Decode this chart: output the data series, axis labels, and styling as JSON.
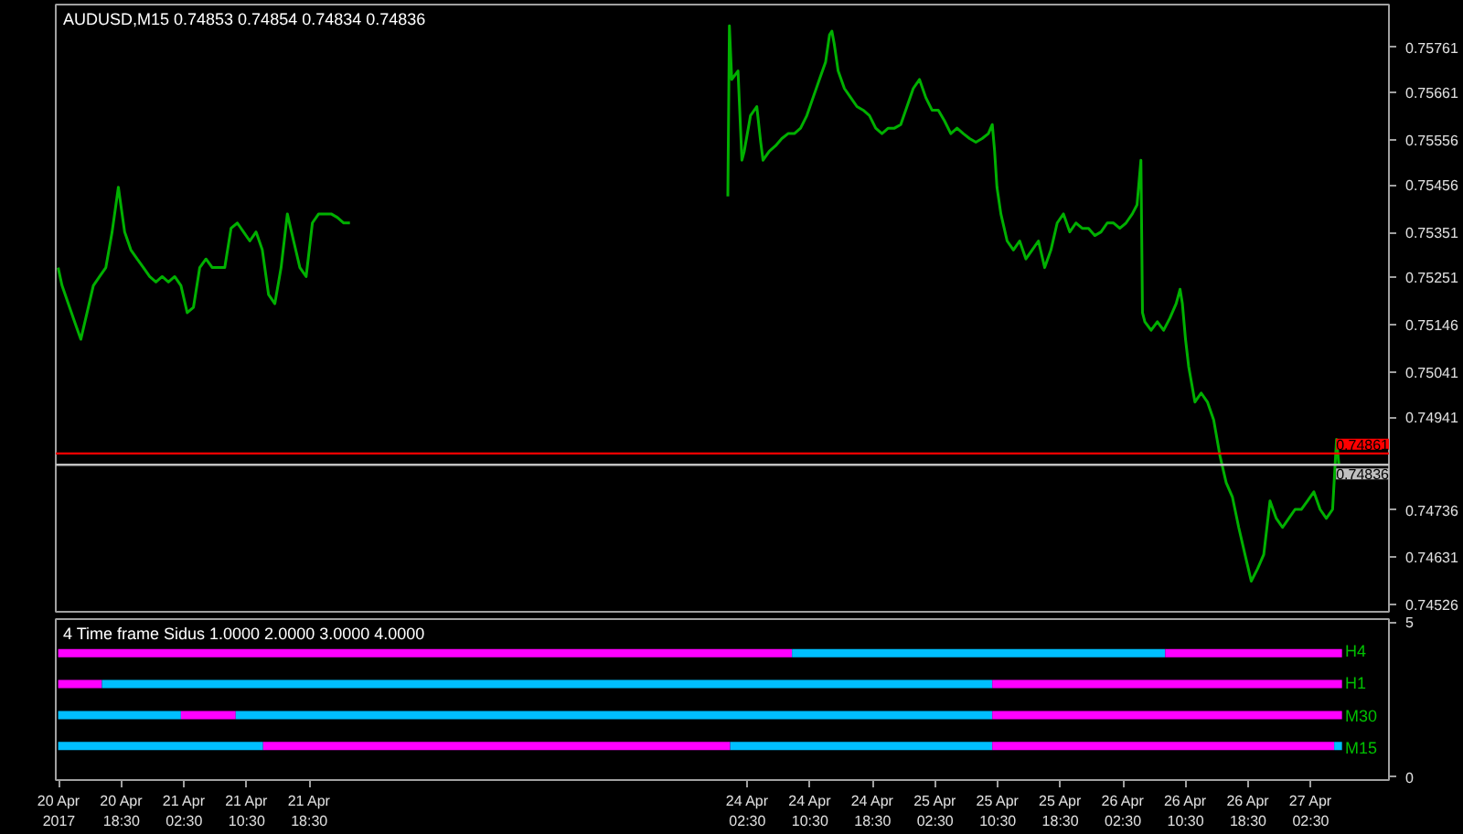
{
  "chart_data": [
    {
      "type": "line",
      "title": "AUDUSD,M15  0.74853 0.74854 0.74834 0.74836",
      "tick_labels": "y",
      "xlim": [
        "2017-04-20T10:06",
        "2017-04-27T12:30"
      ],
      "ylim": [
        0.7451,
        0.75856
      ],
      "yticks": [
        0.75761,
        0.75661,
        0.75556,
        0.75456,
        0.75351,
        0.75251,
        0.75146,
        0.75041,
        0.74941,
        0.74736,
        0.74631,
        0.74526
      ],
      "ref_lines": [
        {
          "axis": "y",
          "value": 0.74861,
          "label": "0.74861",
          "color": "#ff0000"
        },
        {
          "axis": "y",
          "value": 0.74836,
          "label": "0.74836",
          "color": "#c0c0c0"
        }
      ],
      "series": [
        {
          "color": "#00b000",
          "x": [
            "2017-04-20T10:24",
            "2017-04-20T10:54",
            "2017-04-20T11:42",
            "2017-04-20T12:30",
            "2017-04-20T13:18",
            "2017-04-20T14:06",
            "2017-04-20T14:54",
            "2017-04-20T15:42",
            "2017-04-20T16:30",
            "2017-04-20T17:18",
            "2017-04-20T18:06",
            "2017-04-20T18:54",
            "2017-04-20T19:42",
            "2017-04-20T20:30",
            "2017-04-20T21:18",
            "2017-04-20T22:06",
            "2017-04-20T22:54",
            "2017-04-20T23:42",
            "2017-04-21T00:30",
            "2017-04-21T01:18",
            "2017-04-21T02:06",
            "2017-04-21T02:54",
            "2017-04-21T03:42",
            "2017-04-21T04:30",
            "2017-04-21T05:18",
            "2017-04-21T06:06",
            "2017-04-21T06:54",
            "2017-04-21T07:42",
            "2017-04-21T08:30",
            "2017-04-21T09:18",
            "2017-04-21T10:06",
            "2017-04-21T10:54",
            "2017-04-21T11:42",
            "2017-04-21T12:30",
            "2017-04-21T13:18",
            "2017-04-21T14:06",
            "2017-04-21T14:54",
            "2017-04-21T15:42",
            "2017-04-21T16:30",
            "2017-04-21T17:18",
            "2017-04-21T18:06",
            "2017-04-21T18:54",
            "2017-04-21T19:42",
            "2017-04-21T20:30",
            "2017-04-21T21:18",
            "2017-04-21T22:06",
            "2017-04-21T22:54",
            "2017-04-21T23:42",
            "2017-04-22T12:00",
            "2017-04-24T00:00",
            "2017-04-24T00:12",
            "2017-04-24T00:30",
            "2017-04-24T01:18",
            "2017-04-24T01:48",
            "2017-04-24T02:06",
            "2017-04-24T02:54",
            "2017-04-24T03:42",
            "2017-04-24T04:12",
            "2017-04-24T04:30",
            "2017-04-24T05:18",
            "2017-04-24T06:06",
            "2017-04-24T06:54",
            "2017-04-24T07:42",
            "2017-04-24T08:30",
            "2017-04-24T09:18",
            "2017-04-24T10:06",
            "2017-04-24T10:54",
            "2017-04-24T11:42",
            "2017-04-24T12:30",
            "2017-04-24T13:00",
            "2017-04-24T13:18",
            "2017-04-24T13:36",
            "2017-04-24T14:06",
            "2017-04-24T14:54",
            "2017-04-24T15:42",
            "2017-04-24T16:30",
            "2017-04-24T17:18",
            "2017-04-24T18:06",
            "2017-04-24T18:54",
            "2017-04-24T19:42",
            "2017-04-24T20:30",
            "2017-04-24T21:18",
            "2017-04-24T22:06",
            "2017-04-24T22:54",
            "2017-04-24T23:42",
            "2017-04-25T00:30",
            "2017-04-25T01:18",
            "2017-04-25T02:06",
            "2017-04-25T02:54",
            "2017-04-25T03:42",
            "2017-04-25T04:30",
            "2017-04-25T05:18",
            "2017-04-25T06:06",
            "2017-04-25T06:54",
            "2017-04-25T07:42",
            "2017-04-25T08:30",
            "2017-04-25T09:18",
            "2017-04-25T09:48",
            "2017-04-25T10:06",
            "2017-04-25T10:24",
            "2017-04-25T10:54",
            "2017-04-25T11:42",
            "2017-04-25T12:30",
            "2017-04-25T13:18",
            "2017-04-25T14:06",
            "2017-04-25T14:54",
            "2017-04-25T15:42",
            "2017-04-25T16:30",
            "2017-04-25T17:18",
            "2017-04-25T18:06",
            "2017-04-25T18:54",
            "2017-04-25T19:42",
            "2017-04-25T20:30",
            "2017-04-25T21:18",
            "2017-04-25T22:06",
            "2017-04-25T22:54",
            "2017-04-25T23:42",
            "2017-04-26T00:30",
            "2017-04-26T01:18",
            "2017-04-26T02:06",
            "2017-04-26T02:54",
            "2017-04-26T03:42",
            "2017-04-26T04:18",
            "2017-04-26T04:48",
            "2017-04-26T05:00",
            "2017-04-26T05:18",
            "2017-04-26T06:06",
            "2017-04-26T06:54",
            "2017-04-26T07:42",
            "2017-04-26T08:30",
            "2017-04-26T09:18",
            "2017-04-26T09:48",
            "2017-04-26T10:06",
            "2017-04-26T10:30",
            "2017-04-26T10:54",
            "2017-04-26T11:42",
            "2017-04-26T12:30",
            "2017-04-26T13:18",
            "2017-04-26T14:06",
            "2017-04-26T14:54",
            "2017-04-26T15:42",
            "2017-04-26T16:30",
            "2017-04-26T17:18",
            "2017-04-26T18:06",
            "2017-04-26T18:54",
            "2017-04-26T19:42",
            "2017-04-26T20:30",
            "2017-04-26T21:18",
            "2017-04-26T22:06",
            "2017-04-26T22:54",
            "2017-04-26T23:42",
            "2017-04-27T00:30",
            "2017-04-27T01:18",
            "2017-04-27T02:06",
            "2017-04-27T02:54",
            "2017-04-27T03:42",
            "2017-04-27T04:30",
            "2017-04-27T05:18",
            "2017-04-27T05:48",
            "2017-04-27T06:06"
          ],
          "values": [
            0.75273,
            0.75233,
            0.75193,
            0.75153,
            0.75114,
            0.75173,
            0.75233,
            0.75253,
            0.75273,
            0.75352,
            0.75451,
            0.75352,
            0.75312,
            0.75292,
            0.75273,
            0.75253,
            0.75241,
            0.75253,
            0.75241,
            0.75253,
            0.75233,
            0.75173,
            0.75185,
            0.75273,
            0.75292,
            0.75273,
            0.75273,
            0.75273,
            0.7536,
            0.75372,
            0.75352,
            0.75332,
            0.75352,
            0.75312,
            0.75213,
            0.75193,
            0.75273,
            0.75392,
            0.75332,
            0.75273,
            0.75253,
            0.75372,
            0.75392,
            0.75392,
            0.75392,
            0.75384,
            0.75372,
            0.75372,
            null,
            0.75431,
            0.75809,
            0.7569,
            0.75709,
            0.75511,
            0.75531,
            0.7561,
            0.7563,
            0.75551,
            0.75511,
            0.75531,
            0.75543,
            0.75559,
            0.7557,
            0.7557,
            0.75582,
            0.7561,
            0.7565,
            0.7569,
            0.75729,
            0.75789,
            0.75797,
            0.75769,
            0.75709,
            0.7567,
            0.7565,
            0.7563,
            0.75622,
            0.7561,
            0.75582,
            0.7557,
            0.75582,
            0.75582,
            0.7559,
            0.7563,
            0.7567,
            0.7569,
            0.7565,
            0.75622,
            0.75622,
            0.75598,
            0.7557,
            0.75582,
            0.7557,
            0.75559,
            0.75551,
            0.75559,
            0.7557,
            0.7559,
            0.75531,
            0.75451,
            0.75392,
            0.75332,
            0.75312,
            0.75332,
            0.75292,
            0.75312,
            0.75332,
            0.75273,
            0.75312,
            0.75372,
            0.75392,
            0.75352,
            0.75372,
            0.7536,
            0.7536,
            0.75344,
            0.75352,
            0.75372,
            0.75372,
            0.7536,
            0.75372,
            0.75392,
            0.75412,
            0.75511,
            0.75173,
            0.75153,
            0.75134,
            0.75153,
            0.75134,
            0.75161,
            0.75193,
            0.75225,
            0.75193,
            0.75114,
            0.75054,
            0.74975,
            0.74995,
            0.74975,
            0.74935,
            0.74856,
            0.74796,
            0.74764,
            0.74697,
            0.74637,
            0.74578,
            0.74605,
            0.74637,
            0.74756,
            0.74717,
            0.74697,
            0.74717,
            0.74737,
            0.74737,
            0.74756,
            0.74776,
            0.74737,
            0.74717,
            0.74737,
            0.74892,
            0.74836
          ]
        }
      ]
    },
    {
      "type": "line",
      "title": "4 Time frame Sidus 1.0000 2.0000 3.0000 4.0000",
      "xlim": [
        "2017-04-20T10:06",
        "2017-04-27T12:30"
      ],
      "ylim": [
        -0.1,
        5.1
      ],
      "yticks": [
        0,
        5
      ],
      "xticks": [
        {
          "value": "2017-04-20T10:30",
          "label": "20 Apr 2017"
        },
        {
          "value": "2017-04-20T18:30",
          "label": "20 Apr 18:30"
        },
        {
          "value": "2017-04-21T02:30",
          "label": "21 Apr 02:30"
        },
        {
          "value": "2017-04-21T10:30",
          "label": "21 Apr 10:30"
        },
        {
          "value": "2017-04-21T18:30",
          "label": "21 Apr 18:30"
        },
        {
          "value": "2017-04-24T02:30",
          "label": "24 Apr 02:30"
        },
        {
          "value": "2017-04-24T10:30",
          "label": "24 Apr 10:30"
        },
        {
          "value": "2017-04-24T18:30",
          "label": "24 Apr 18:30"
        },
        {
          "value": "2017-04-25T02:30",
          "label": "25 Apr 02:30"
        },
        {
          "value": "2017-04-25T10:30",
          "label": "25 Apr 10:30"
        },
        {
          "value": "2017-04-25T18:30",
          "label": "25 Apr 18:30"
        },
        {
          "value": "2017-04-26T02:30",
          "label": "26 Apr 02:30"
        },
        {
          "value": "2017-04-26T10:30",
          "label": "26 Apr 10:30"
        },
        {
          "value": "2017-04-26T18:30",
          "label": "26 Apr 18:30"
        },
        {
          "value": "2017-04-27T02:30",
          "label": "27 Apr 02:30"
        }
      ],
      "annotations": [
        "H4",
        "H1",
        "M30",
        "M15"
      ],
      "series": [
        {
          "color": "#ff00ff",
          "x": [
            "2017-04-20T10:24",
            "2017-04-24T08:12"
          ],
          "values": [
            4,
            4
          ]
        },
        {
          "color": "#00bfff",
          "x": [
            "2017-04-24T08:12",
            "2017-04-26T07:54"
          ],
          "values": [
            4,
            4
          ]
        },
        {
          "color": "#ff00ff",
          "x": [
            "2017-04-26T07:54",
            "2017-04-27T06:30"
          ],
          "values": [
            4,
            4
          ]
        },
        {
          "color": "#ff00ff",
          "x": [
            "2017-04-20T10:24",
            "2017-04-20T16:00"
          ],
          "values": [
            3,
            3
          ]
        },
        {
          "color": "#00bfff",
          "x": [
            "2017-04-20T16:00",
            "2017-04-25T09:48"
          ],
          "values": [
            3,
            3
          ]
        },
        {
          "color": "#ff00ff",
          "x": [
            "2017-04-25T09:48",
            "2017-04-27T06:30"
          ],
          "values": [
            3,
            3
          ]
        },
        {
          "color": "#00bfff",
          "x": [
            "2017-04-20T10:24",
            "2017-04-21T02:06"
          ],
          "values": [
            2,
            2
          ]
        },
        {
          "color": "#ff00ff",
          "x": [
            "2017-04-21T02:06",
            "2017-04-21T09:06"
          ],
          "values": [
            2,
            2
          ]
        },
        {
          "color": "#00bfff",
          "x": [
            "2017-04-21T09:06",
            "2017-04-25T09:48"
          ],
          "values": [
            2,
            2
          ]
        },
        {
          "color": "#ff00ff",
          "x": [
            "2017-04-25T09:48",
            "2017-04-27T06:30"
          ],
          "values": [
            2,
            2
          ]
        },
        {
          "color": "#00bfff",
          "x": [
            "2017-04-20T10:24",
            "2017-04-21T12:36"
          ],
          "values": [
            1,
            1
          ]
        },
        {
          "color": "#ff00ff",
          "x": [
            "2017-04-21T12:36",
            "2017-04-24T00:18"
          ],
          "values": [
            1,
            1
          ]
        },
        {
          "color": "#00bfff",
          "x": [
            "2017-04-24T00:18",
            "2017-04-25T09:48"
          ],
          "values": [
            1,
            1
          ]
        },
        {
          "color": "#ff00ff",
          "x": [
            "2017-04-25T09:48",
            "2017-04-27T05:30"
          ],
          "values": [
            1,
            1
          ]
        },
        {
          "color": "#00bfff",
          "x": [
            "2017-04-27T05:30",
            "2017-04-27T06:30"
          ],
          "values": [
            1,
            1
          ]
        }
      ]
    }
  ]
}
